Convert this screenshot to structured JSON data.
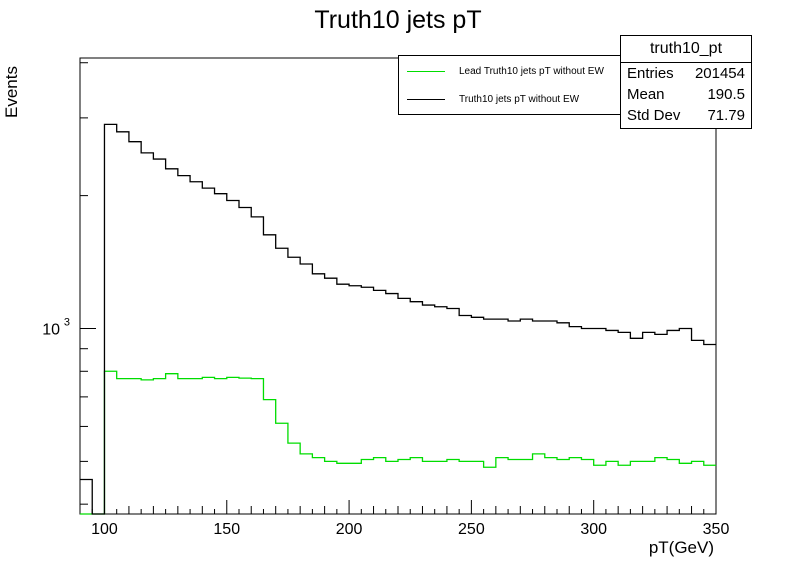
{
  "chart_data": {
    "type": "line",
    "title": "Truth10 jets pT",
    "xlabel": "pT(GeV)",
    "ylabel": "Events",
    "xlim": [
      90,
      350
    ],
    "ylim": [
      380,
      4100
    ],
    "yscale": "log",
    "xticks": [
      100,
      150,
      200,
      250,
      300,
      350
    ],
    "yticks": [
      {
        "value": 1000,
        "label": "10",
        "exp": "3"
      }
    ],
    "bin_edges": [
      90,
      95,
      100,
      105,
      110,
      115,
      120,
      125,
      130,
      135,
      140,
      145,
      150,
      155,
      160,
      165,
      170,
      175,
      180,
      185,
      190,
      195,
      200,
      205,
      210,
      215,
      220,
      225,
      230,
      235,
      240,
      245,
      250,
      255,
      260,
      265,
      270,
      275,
      280,
      285,
      290,
      295,
      300,
      305,
      310,
      315,
      320,
      325,
      330,
      335,
      340,
      345,
      350
    ],
    "series": [
      {
        "name": "Lead Truth10 jets pT without EW",
        "color": "#00dd00",
        "values": [
          0,
          0,
          800,
          770,
          770,
          765,
          770,
          790,
          770,
          770,
          775,
          770,
          775,
          772,
          770,
          690,
          610,
          550,
          520,
          510,
          500,
          495,
          495,
          505,
          510,
          500,
          505,
          510,
          500,
          500,
          505,
          500,
          500,
          485,
          510,
          505,
          505,
          520,
          510,
          505,
          510,
          505,
          490,
          500,
          490,
          500,
          500,
          510,
          505,
          495,
          500,
          490
        ]
      },
      {
        "name": "Truth10 jets pT without EW",
        "color": "#000000",
        "values": [
          455,
          0,
          2900,
          2790,
          2650,
          2500,
          2420,
          2300,
          2220,
          2150,
          2080,
          2020,
          1950,
          1880,
          1790,
          1630,
          1520,
          1450,
          1400,
          1330,
          1300,
          1260,
          1250,
          1240,
          1220,
          1200,
          1170,
          1150,
          1130,
          1120,
          1110,
          1070,
          1060,
          1050,
          1050,
          1040,
          1050,
          1040,
          1040,
          1030,
          1010,
          1000,
          1000,
          990,
          980,
          950,
          980,
          970,
          990,
          1000,
          940,
          920
        ]
      }
    ],
    "stats": {
      "name": "truth10_pt",
      "rows": [
        {
          "label": "Entries",
          "value": "201454"
        },
        {
          "label": "Mean",
          "value": "190.5"
        },
        {
          "label": "Std Dev",
          "value": "71.79"
        }
      ]
    },
    "legend_position": "top-right"
  }
}
